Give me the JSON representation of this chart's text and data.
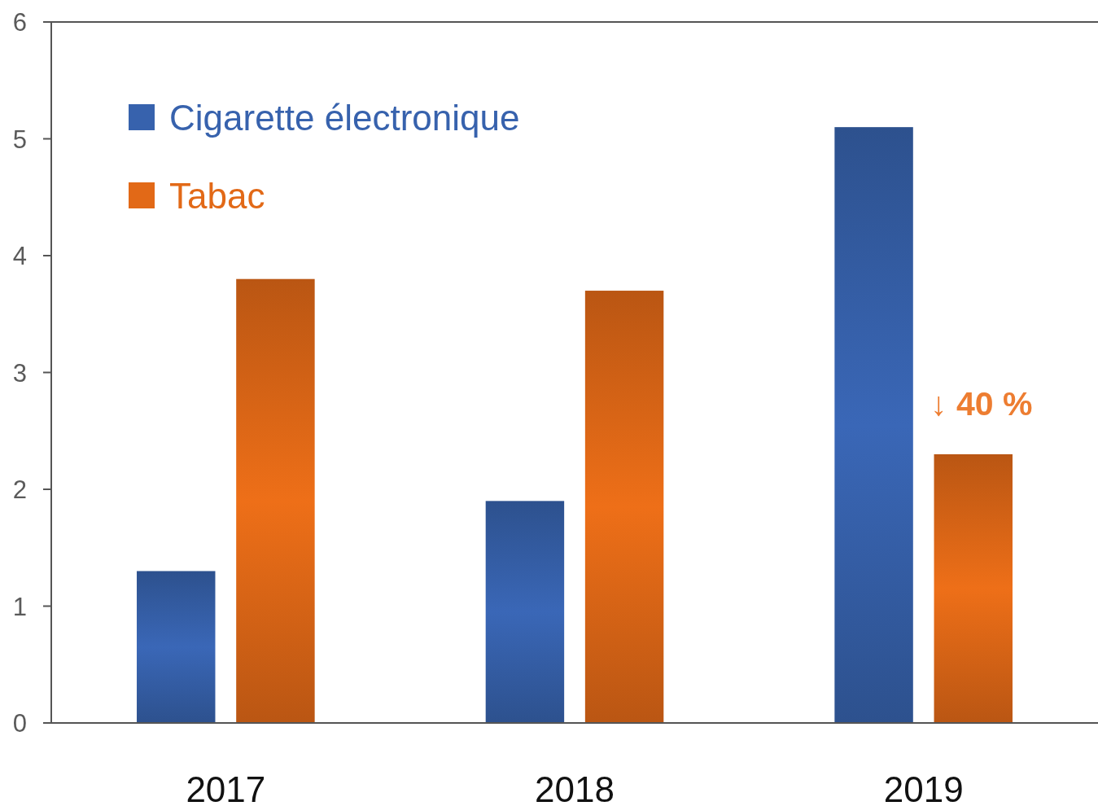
{
  "chart_data": {
    "type": "bar",
    "categories": [
      "2017",
      "2018",
      "2019"
    ],
    "series": [
      {
        "name": "Cigarette électronique",
        "color": "#3762ad",
        "values": [
          1.3,
          1.9,
          5.1
        ]
      },
      {
        "name": "Tabac",
        "color": "#e26917",
        "values": [
          3.8,
          3.7,
          2.3
        ]
      }
    ],
    "ylim": [
      0,
      6
    ],
    "yticks": [
      0,
      1,
      2,
      3,
      4,
      5,
      6
    ],
    "legend": "top left",
    "annotations": [
      "↓ 40 %"
    ]
  }
}
